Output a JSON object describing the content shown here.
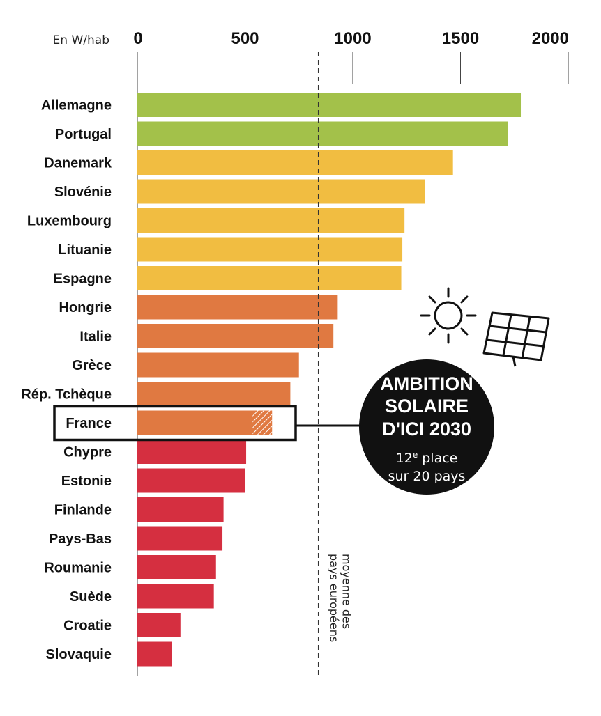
{
  "chart_data": {
    "type": "bar",
    "orientation": "horizontal",
    "unit_label": "En W/hab",
    "xlim": [
      0,
      2000
    ],
    "ticks": [
      0,
      500,
      1000,
      1500,
      2000
    ],
    "categories": [
      "Allemagne",
      "Portugal",
      "Danemark",
      "Slovénie",
      "Luxembourg",
      "Lituanie",
      "Espagne",
      "Hongrie",
      "Italie",
      "Grèce",
      "Rép. Tchèque",
      "France",
      "Chypre",
      "Estonie",
      "Finlande",
      "Pays-Bas",
      "Roumanie",
      "Suède",
      "Croatie",
      "Slovaquie"
    ],
    "values": [
      1780,
      1720,
      1465,
      1335,
      1240,
      1230,
      1225,
      930,
      910,
      750,
      710,
      625,
      505,
      500,
      400,
      395,
      365,
      355,
      200,
      160
    ],
    "france_hatched_from": 535,
    "colors": [
      "#a3c14a",
      "#a3c14a",
      "#f1bd41",
      "#f1bd41",
      "#f1bd41",
      "#f1bd41",
      "#f1bd41",
      "#e07941",
      "#e07941",
      "#e07941",
      "#e07941",
      "#e07941",
      "#d52f40",
      "#d52f40",
      "#d52f40",
      "#d52f40",
      "#d52f40",
      "#d52f40",
      "#d52f40",
      "#d52f40"
    ],
    "average": {
      "value": 840,
      "label_line1": "moyenne des",
      "label_line2": "pays européens"
    },
    "highlight": "France",
    "grid": false,
    "legend": "none"
  },
  "badge": {
    "line1": "AMBITION",
    "line2": "SOLAIRE",
    "line3": "D'ICI 2030",
    "rank_number": "12",
    "rank_suffix": "e",
    "rank_rest": " place",
    "line5": "sur 20 pays"
  },
  "icons": [
    "sun-icon",
    "solar-panel-icon"
  ]
}
